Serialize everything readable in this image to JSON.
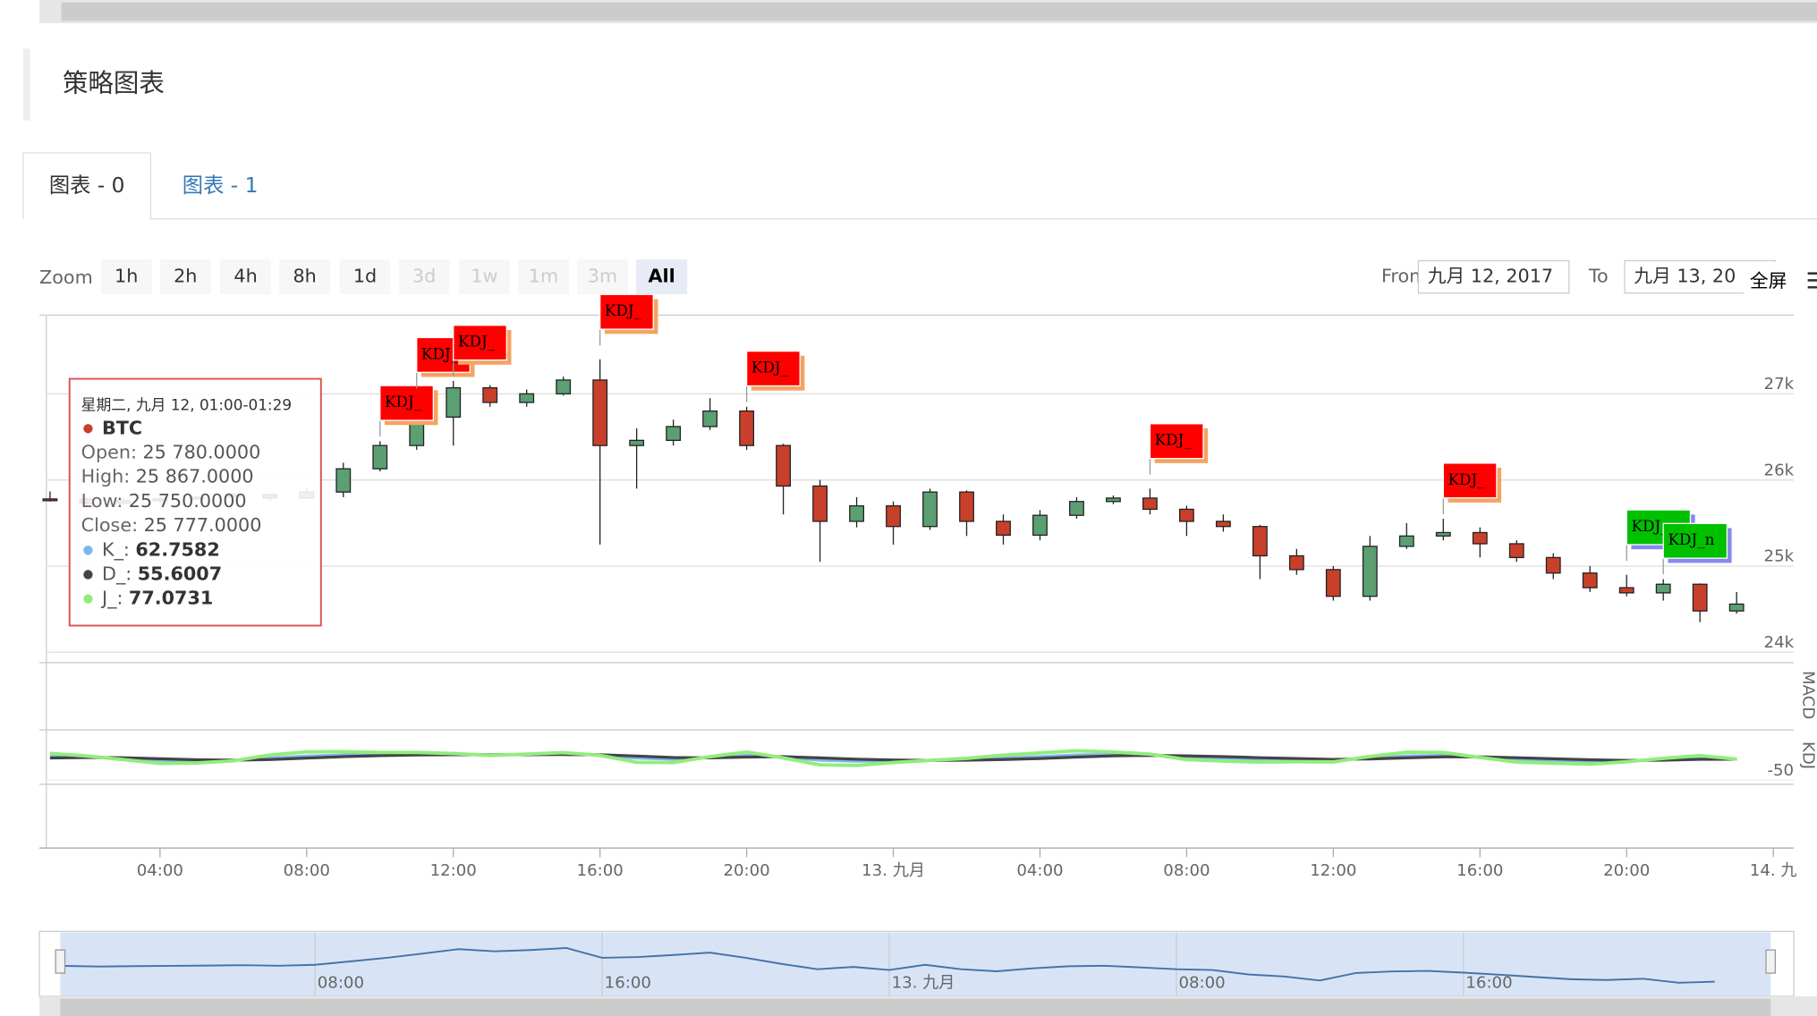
{
  "page": {
    "title": "策略图表",
    "tabs": [
      "图表 - 0",
      "图表 - 1"
    ],
    "zoom_label": "Zoom",
    "zoom_buttons": [
      {
        "label": "1h"
      },
      {
        "label": "2h"
      },
      {
        "label": "4h"
      },
      {
        "label": "8h"
      },
      {
        "label": "1d"
      },
      {
        "label": "3d",
        "enabled": false
      },
      {
        "label": "1w",
        "enabled": false
      },
      {
        "label": "1m",
        "enabled": false
      },
      {
        "label": "3m",
        "enabled": false
      },
      {
        "label": "All",
        "selected": true
      }
    ],
    "from_label": "From",
    "from_value": "九月 12, 2017",
    "to_label": "To",
    "to_value": "九月 13, 20",
    "fullscreen": "全屏"
  },
  "chart_data": {
    "type": "candlestick",
    "series_name": "BTC",
    "up_color": "#5b9f72",
    "down_color": "#c8402b",
    "x": [
      1,
      2,
      3,
      4,
      5,
      6,
      7,
      8,
      9,
      10,
      11,
      12,
      13,
      14,
      15,
      16,
      17,
      18,
      19,
      20,
      21,
      22,
      23,
      24,
      25,
      26,
      27,
      28,
      29,
      30,
      31,
      32,
      33,
      34,
      35,
      36,
      37,
      38,
      39,
      40,
      41,
      42,
      43,
      44,
      45,
      46,
      47
    ],
    "open": [
      25780,
      25777,
      25730,
      25760,
      25780,
      25800,
      25830,
      25790,
      25860,
      26130,
      26400,
      26730,
      27070,
      26900,
      27000,
      27160,
      26400,
      26460,
      26620,
      26800,
      26400,
      25930,
      25520,
      25700,
      25460,
      25860,
      25520,
      25360,
      25590,
      25750,
      25790,
      25660,
      25520,
      25460,
      25120,
      24960,
      24650,
      25230,
      25350,
      25390,
      25260,
      25100,
      24920,
      24750,
      24690,
      24790,
      24480
    ],
    "high": [
      25867,
      25800,
      25790,
      25800,
      25820,
      25850,
      25840,
      25900,
      26200,
      26450,
      26900,
      27150,
      27100,
      27050,
      27200,
      27400,
      26600,
      26700,
      26950,
      26850,
      26420,
      26000,
      25800,
      25750,
      25900,
      25880,
      25600,
      25650,
      25800,
      25820,
      25900,
      25700,
      25600,
      25480,
      25200,
      25000,
      25350,
      25500,
      25550,
      25450,
      25300,
      25150,
      25000,
      24900,
      24850,
      24800,
      24700
    ],
    "low": [
      25750,
      25700,
      25720,
      25740,
      25770,
      25790,
      25760,
      25780,
      25800,
      26100,
      26350,
      26400,
      26850,
      26850,
      26980,
      25250,
      25900,
      26400,
      26580,
      26350,
      25600,
      25050,
      25450,
      25250,
      25420,
      25350,
      25250,
      25300,
      25550,
      25720,
      25600,
      25350,
      25400,
      24850,
      24900,
      24600,
      24600,
      25200,
      25300,
      25100,
      25050,
      24850,
      24700,
      24650,
      24600,
      24350,
      24450
    ],
    "close": [
      25777,
      25730,
      25760,
      25780,
      25800,
      25830,
      25790,
      25860,
      26130,
      26400,
      26730,
      27070,
      26900,
      27000,
      27160,
      26400,
      26460,
      26620,
      26800,
      26400,
      25930,
      25520,
      25700,
      25460,
      25860,
      25520,
      25360,
      25590,
      25750,
      25790,
      25660,
      25520,
      25460,
      25120,
      24960,
      24650,
      25230,
      25350,
      25390,
      25260,
      25100,
      24920,
      24750,
      24690,
      24790,
      24480,
      24560
    ],
    "xlim": [
      0.9,
      48.56
    ],
    "xticks": [
      {
        "value": 4,
        "label": "04:00"
      },
      {
        "value": 8,
        "label": "08:00"
      },
      {
        "value": 12,
        "label": "12:00"
      },
      {
        "value": 16,
        "label": "16:00"
      },
      {
        "value": 20,
        "label": "20:00"
      },
      {
        "value": 24,
        "label": "13. 九月"
      },
      {
        "value": 28,
        "label": "04:00"
      },
      {
        "value": 32,
        "label": "08:00"
      },
      {
        "value": 36,
        "label": "12:00"
      },
      {
        "value": 40,
        "label": "16:00"
      },
      {
        "value": 44,
        "label": "20:00"
      },
      {
        "value": 48,
        "label": "14. 九"
      }
    ],
    "ylim": [
      23880,
      27900
    ],
    "yticks": [
      {
        "value": 24000,
        "label": "24k"
      },
      {
        "value": 25000,
        "label": "25k"
      },
      {
        "value": 26000,
        "label": "26k"
      },
      {
        "value": 27000,
        "label": "27k"
      }
    ],
    "grid": true,
    "flags": [
      {
        "x": 10,
        "text": "KDJ_",
        "color": "#ff0000"
      },
      {
        "x": 11,
        "text": "KDJ_",
        "color": "#ff0000"
      },
      {
        "x": 12,
        "text": "KDJ_",
        "color": "#ff0000"
      },
      {
        "x": 16,
        "text": "KDJ_",
        "color": "#ff0000"
      },
      {
        "x": 20,
        "text": "KDJ_",
        "color": "#ff0000"
      },
      {
        "x": 31,
        "text": "KDJ_",
        "color": "#ff0000"
      },
      {
        "x": 39,
        "text": "KDJ_",
        "color": "#ff0000"
      },
      {
        "x": 44,
        "text": "KDJ_n",
        "color": "#00c000"
      },
      {
        "x": 45,
        "text": "KDJ_n",
        "color": "#00c000"
      }
    ],
    "tooltip": {
      "title": "星期二, 九月 12, 01:00-01:29",
      "rows": [
        {
          "label": "Open:",
          "value": "25 780.0000"
        },
        {
          "label": "High:",
          "value": "25 867.0000"
        },
        {
          "label": "Low:",
          "value": "25 750.0000"
        },
        {
          "label": "Close:",
          "value": "25 777.0000"
        }
      ],
      "indicator_labels": [
        "K_:",
        "D_:",
        "J_:"
      ]
    },
    "macd": {
      "name": "MACD"
    },
    "indicator": {
      "type": "line",
      "name": "KDJ",
      "ylim": [
        -70,
        190
      ],
      "yticks": [
        -50
      ],
      "series": [
        {
          "name": "K_",
          "color": "#7cb5ec",
          "values": [
            62.7582,
            60,
            55,
            45,
            42,
            44,
            55,
            65,
            70,
            72,
            74,
            73,
            70,
            72,
            75,
            70,
            55,
            50,
            58,
            68,
            60,
            45,
            40,
            42,
            44,
            48,
            55,
            62,
            70,
            72,
            70,
            60,
            55,
            50,
            48,
            45,
            55,
            65,
            68,
            60,
            50,
            45,
            40,
            42,
            48,
            55,
            50
          ]
        },
        {
          "name": "D_",
          "color": "#434348",
          "values": [
            55.6007,
            58,
            57,
            52,
            47,
            45,
            48,
            55,
            62,
            67,
            70,
            71,
            71,
            71,
            72,
            71,
            65,
            58,
            56,
            60,
            62,
            56,
            50,
            46,
            44,
            45,
            48,
            53,
            60,
            66,
            68,
            66,
            62,
            57,
            53,
            49,
            51,
            56,
            61,
            61,
            57,
            52,
            47,
            44,
            45,
            49,
            50
          ]
        },
        {
          "name": "J_",
          "color": "#90ed7d",
          "values": [
            77.0731,
            65,
            48,
            30,
            32,
            42,
            70,
            85,
            86,
            82,
            82,
            77,
            68,
            74,
            81,
            68,
            35,
            34,
            62,
            84,
            56,
            23,
            20,
            34,
            44,
            54,
            69,
            80,
            90,
            84,
            74,
            48,
            41,
            36,
            38,
            37,
            63,
            83,
            82,
            58,
            36,
            31,
            26,
            38,
            54,
            67,
            50
          ]
        }
      ]
    },
    "navigator": {
      "xticks": [
        {
          "value": 8,
          "label": "08:00"
        },
        {
          "value": 16,
          "label": "16:00"
        },
        {
          "value": 24,
          "label": "13. 九月"
        },
        {
          "value": 32,
          "label": "08:00"
        },
        {
          "value": 40,
          "label": "16:00"
        }
      ]
    }
  }
}
